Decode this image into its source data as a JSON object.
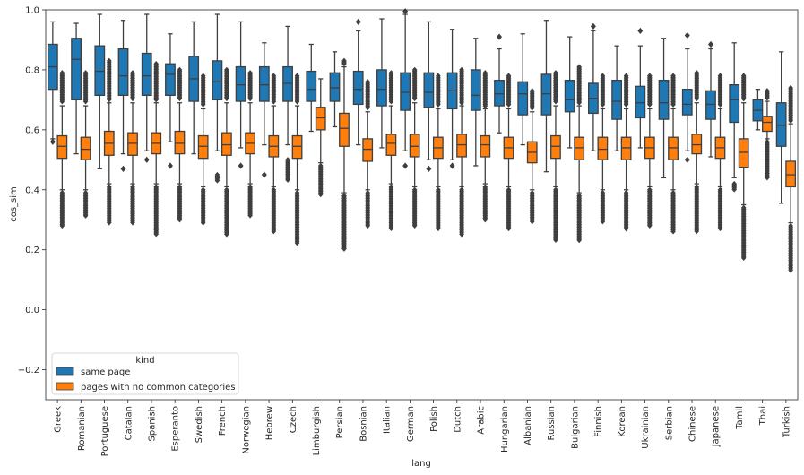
{
  "chart_data": {
    "type": "box",
    "xlabel": "lang",
    "ylabel": "cos_sim",
    "ylim": [
      -0.3,
      1.0
    ],
    "yticks": [
      -0.2,
      0.0,
      0.2,
      0.4,
      0.6,
      0.8,
      1.0
    ],
    "ytick_labels": [
      "−0.2",
      "0.0",
      "0.2",
      "0.4",
      "0.6",
      "0.8",
      "1.0"
    ],
    "legend": {
      "title": "kind",
      "position": "lower-left",
      "entries": [
        {
          "label": "same page",
          "color": "#1f77b4"
        },
        {
          "label": "pages with no common categories",
          "color": "#ff7f0e"
        }
      ]
    },
    "categories": [
      "Greek",
      "Romanian",
      "Portuguese",
      "Catalan",
      "Spanish",
      "Esperanto",
      "Swedish",
      "French",
      "Norwegian",
      "Hebrew",
      "Czech",
      "Limburgish",
      "Persian",
      "Bosnian",
      "Italian",
      "German",
      "Polish",
      "Dutch",
      "Arabic",
      "Hungarian",
      "Albanian",
      "Russian",
      "Bulgarian",
      "Finnish",
      "Korean",
      "Ukrainian",
      "Serbian",
      "Chinese",
      "Japanese",
      "Tamil",
      "Thai",
      "Turkish"
    ],
    "series": [
      {
        "name": "same page",
        "color": "#1f77b4",
        "boxes": [
          {
            "whislo": 0.57,
            "q1": 0.735,
            "med": 0.81,
            "q3": 0.885,
            "whishi": 0.96,
            "fliers_low": [
              0.56
            ],
            "fliers_high": []
          },
          {
            "whislo": 0.52,
            "q1": 0.7,
            "med": 0.835,
            "q3": 0.905,
            "whishi": 0.955,
            "fliers_low": [],
            "fliers_high": []
          },
          {
            "whislo": 0.47,
            "q1": 0.715,
            "med": 0.795,
            "q3": 0.88,
            "whishi": 0.985,
            "fliers_low": [],
            "fliers_high": []
          },
          {
            "whislo": 0.52,
            "q1": 0.715,
            "med": 0.78,
            "q3": 0.87,
            "whishi": 0.965,
            "fliers_low": [
              0.47
            ],
            "fliers_high": []
          },
          {
            "whislo": 0.53,
            "q1": 0.715,
            "med": 0.78,
            "q3": 0.855,
            "whishi": 0.985,
            "fliers_low": [
              0.5
            ],
            "fliers_high": []
          },
          {
            "whislo": 0.56,
            "q1": 0.715,
            "med": 0.785,
            "q3": 0.82,
            "whishi": 0.92,
            "fliers_low": [
              0.48
            ],
            "fliers_high": []
          },
          {
            "whislo": 0.52,
            "q1": 0.695,
            "med": 0.77,
            "q3": 0.845,
            "whishi": 0.96,
            "fliers_low": [],
            "fliers_high": []
          },
          {
            "whislo": 0.53,
            "q1": 0.7,
            "med": 0.76,
            "q3": 0.83,
            "whishi": 0.985,
            "fliers_low": [
              0.45,
              0.43
            ],
            "fliers_high": []
          },
          {
            "whislo": 0.54,
            "q1": 0.695,
            "med": 0.75,
            "q3": 0.81,
            "whishi": 0.96,
            "fliers_low": [
              0.48
            ],
            "fliers_high": []
          },
          {
            "whislo": 0.55,
            "q1": 0.695,
            "med": 0.75,
            "q3": 0.81,
            "whishi": 0.89,
            "fliers_low": [
              0.45
            ],
            "fliers_high": []
          },
          {
            "whislo": 0.55,
            "q1": 0.695,
            "med": 0.755,
            "q3": 0.81,
            "whishi": 0.945,
            "fliers_low": [
              0.5,
              0.43
            ],
            "fliers_high": []
          },
          {
            "whislo": 0.595,
            "q1": 0.695,
            "med": 0.735,
            "q3": 0.795,
            "whishi": 0.885,
            "fliers_low": [],
            "fliers_high": []
          },
          {
            "whislo": 0.61,
            "q1": 0.695,
            "med": 0.74,
            "q3": 0.79,
            "whishi": 0.86,
            "fliers_low": [],
            "fliers_high": []
          },
          {
            "whislo": 0.55,
            "q1": 0.685,
            "med": 0.735,
            "q3": 0.795,
            "whishi": 0.93,
            "fliers_low": [],
            "fliers_high": [
              0.96
            ]
          },
          {
            "whislo": 0.54,
            "q1": 0.68,
            "med": 0.735,
            "q3": 0.8,
            "whishi": 0.97,
            "fliers_low": [],
            "fliers_high": []
          },
          {
            "whislo": 0.53,
            "q1": 0.665,
            "med": 0.725,
            "q3": 0.79,
            "whishi": 0.985,
            "fliers_low": [
              0.48
            ],
            "fliers_high": [
              0.995
            ]
          },
          {
            "whislo": 0.5,
            "q1": 0.675,
            "med": 0.725,
            "q3": 0.79,
            "whishi": 0.96,
            "fliers_low": [
              0.47
            ],
            "fliers_high": []
          },
          {
            "whislo": 0.5,
            "q1": 0.67,
            "med": 0.73,
            "q3": 0.79,
            "whishi": 0.935,
            "fliers_low": [
              0.48
            ],
            "fliers_high": []
          },
          {
            "whislo": 0.48,
            "q1": 0.665,
            "med": 0.715,
            "q3": 0.8,
            "whishi": 0.905,
            "fliers_low": [],
            "fliers_high": []
          },
          {
            "whislo": 0.59,
            "q1": 0.68,
            "med": 0.72,
            "q3": 0.765,
            "whishi": 0.87,
            "fliers_low": [],
            "fliers_high": [
              0.91
            ]
          },
          {
            "whislo": 0.55,
            "q1": 0.65,
            "med": 0.72,
            "q3": 0.76,
            "whishi": 0.92,
            "fliers_low": [],
            "fliers_high": []
          },
          {
            "whislo": 0.46,
            "q1": 0.65,
            "med": 0.72,
            "q3": 0.785,
            "whishi": 0.965,
            "fliers_low": [],
            "fliers_high": []
          },
          {
            "whislo": 0.54,
            "q1": 0.66,
            "med": 0.7,
            "q3": 0.765,
            "whishi": 0.91,
            "fliers_low": [],
            "fliers_high": []
          },
          {
            "whislo": 0.53,
            "q1": 0.655,
            "med": 0.705,
            "q3": 0.755,
            "whishi": 0.93,
            "fliers_low": [],
            "fliers_high": [
              0.945
            ]
          },
          {
            "whislo": 0.53,
            "q1": 0.635,
            "med": 0.695,
            "q3": 0.765,
            "whishi": 0.88,
            "fliers_low": [],
            "fliers_high": []
          },
          {
            "whislo": 0.54,
            "q1": 0.64,
            "med": 0.69,
            "q3": 0.745,
            "whishi": 0.88,
            "fliers_low": [],
            "fliers_high": [
              0.93
            ]
          },
          {
            "whislo": 0.44,
            "q1": 0.635,
            "med": 0.69,
            "q3": 0.765,
            "whishi": 0.905,
            "fliers_low": [],
            "fliers_high": []
          },
          {
            "whislo": 0.53,
            "q1": 0.65,
            "med": 0.685,
            "q3": 0.735,
            "whishi": 0.87,
            "fliers_low": [
              0.5
            ],
            "fliers_high": [
              0.915
            ]
          },
          {
            "whislo": 0.51,
            "q1": 0.635,
            "med": 0.685,
            "q3": 0.73,
            "whishi": 0.87,
            "fliers_low": [],
            "fliers_high": [
              0.885
            ]
          },
          {
            "whislo": 0.44,
            "q1": 0.625,
            "med": 0.7,
            "q3": 0.75,
            "whishi": 0.89,
            "fliers_low": [
              0.42,
              0.4
            ],
            "fliers_high": []
          },
          {
            "whislo": 0.6,
            "q1": 0.63,
            "med": 0.665,
            "q3": 0.7,
            "whishi": 0.735,
            "fliers_low": [],
            "fliers_high": []
          },
          {
            "whislo": 0.355,
            "q1": 0.545,
            "med": 0.615,
            "q3": 0.69,
            "whishi": 0.86,
            "fliers_low": [],
            "fliers_high": []
          }
        ]
      },
      {
        "name": "pages with no common categories",
        "color": "#ff7f0e",
        "boxes": [
          {
            "whislo": 0.4,
            "q1": 0.505,
            "med": 0.545,
            "q3": 0.58,
            "whishi": 0.68,
            "fliers_low": [
              0.39,
              0.28
            ],
            "fliers_high": [
              0.79
            ]
          },
          {
            "whislo": 0.4,
            "q1": 0.5,
            "med": 0.535,
            "q3": 0.575,
            "whishi": 0.68,
            "fliers_low": [
              0.39,
              0.31
            ],
            "fliers_high": [
              0.79
            ]
          },
          {
            "whislo": 0.42,
            "q1": 0.515,
            "med": 0.555,
            "q3": 0.595,
            "whishi": 0.69,
            "fliers_low": [
              0.41,
              0.29
            ],
            "fliers_high": [
              0.83
            ]
          },
          {
            "whislo": 0.42,
            "q1": 0.515,
            "med": 0.555,
            "q3": 0.59,
            "whishi": 0.69,
            "fliers_low": [
              0.41,
              0.29
            ],
            "fliers_high": [
              0.79
            ]
          },
          {
            "whislo": 0.42,
            "q1": 0.52,
            "med": 0.555,
            "q3": 0.59,
            "whishi": 0.69,
            "fliers_low": [
              0.41,
              0.25
            ],
            "fliers_high": [
              0.82
            ]
          },
          {
            "whislo": 0.42,
            "q1": 0.52,
            "med": 0.555,
            "q3": 0.595,
            "whishi": 0.69,
            "fliers_low": [
              0.41,
              0.3
            ],
            "fliers_high": [
              0.8
            ]
          },
          {
            "whislo": 0.41,
            "q1": 0.505,
            "med": 0.545,
            "q3": 0.58,
            "whishi": 0.67,
            "fliers_low": [
              0.4,
              0.29
            ],
            "fliers_high": [
              0.78
            ]
          },
          {
            "whislo": 0.41,
            "q1": 0.515,
            "med": 0.55,
            "q3": 0.59,
            "whishi": 0.69,
            "fliers_low": [
              0.4,
              0.25
            ],
            "fliers_high": [
              0.8
            ]
          },
          {
            "whislo": 0.42,
            "q1": 0.52,
            "med": 0.555,
            "q3": 0.59,
            "whishi": 0.69,
            "fliers_low": [
              0.41,
              0.31
            ],
            "fliers_high": [
              0.79
            ]
          },
          {
            "whislo": 0.41,
            "q1": 0.51,
            "med": 0.545,
            "q3": 0.58,
            "whishi": 0.68,
            "fliers_low": [
              0.4,
              0.26
            ],
            "fliers_high": [
              0.78
            ]
          },
          {
            "whislo": 0.4,
            "q1": 0.505,
            "med": 0.545,
            "q3": 0.58,
            "whishi": 0.68,
            "fliers_low": [
              0.39,
              0.22
            ],
            "fliers_high": [
              0.78
            ]
          },
          {
            "whislo": 0.49,
            "q1": 0.6,
            "med": 0.64,
            "q3": 0.675,
            "whishi": 0.77,
            "fliers_low": [
              0.48,
              0.38
            ],
            "fliers_high": []
          },
          {
            "whislo": 0.39,
            "q1": 0.545,
            "med": 0.605,
            "q3": 0.655,
            "whishi": 0.81,
            "fliers_low": [
              0.38,
              0.2
            ],
            "fliers_high": [
              0.83
            ]
          },
          {
            "whislo": 0.4,
            "q1": 0.495,
            "med": 0.535,
            "q3": 0.57,
            "whishi": 0.66,
            "fliers_low": [
              0.39,
              0.28
            ],
            "fliers_high": [
              0.76
            ]
          },
          {
            "whislo": 0.42,
            "q1": 0.515,
            "med": 0.555,
            "q3": 0.585,
            "whishi": 0.68,
            "fliers_low": [
              0.41,
              0.27
            ],
            "fliers_high": [
              0.79
            ]
          },
          {
            "whislo": 0.41,
            "q1": 0.51,
            "med": 0.545,
            "q3": 0.585,
            "whishi": 0.69,
            "fliers_low": [
              0.4,
              0.28
            ],
            "fliers_high": [
              0.8
            ]
          },
          {
            "whislo": 0.41,
            "q1": 0.505,
            "med": 0.54,
            "q3": 0.575,
            "whishi": 0.67,
            "fliers_low": [
              0.4,
              0.27
            ],
            "fliers_high": [
              0.78
            ]
          },
          {
            "whislo": 0.41,
            "q1": 0.51,
            "med": 0.55,
            "q3": 0.585,
            "whishi": 0.68,
            "fliers_low": [
              0.4,
              0.25
            ],
            "fliers_high": [
              0.8
            ]
          },
          {
            "whislo": 0.42,
            "q1": 0.51,
            "med": 0.55,
            "q3": 0.58,
            "whishi": 0.67,
            "fliers_low": [
              0.41,
              0.3
            ],
            "fliers_high": [
              0.79
            ]
          },
          {
            "whislo": 0.41,
            "q1": 0.505,
            "med": 0.54,
            "q3": 0.575,
            "whishi": 0.67,
            "fliers_low": [
              0.4,
              0.27
            ],
            "fliers_high": [
              0.78
            ]
          },
          {
            "whislo": 0.4,
            "q1": 0.49,
            "med": 0.525,
            "q3": 0.56,
            "whishi": 0.66,
            "fliers_low": [
              0.39,
              0.29
            ],
            "fliers_high": [
              0.73
            ]
          },
          {
            "whislo": 0.41,
            "q1": 0.505,
            "med": 0.545,
            "q3": 0.58,
            "whishi": 0.68,
            "fliers_low": [
              0.4,
              0.23
            ],
            "fliers_high": [
              0.79
            ]
          },
          {
            "whislo": 0.39,
            "q1": 0.5,
            "med": 0.54,
            "q3": 0.575,
            "whishi": 0.68,
            "fliers_low": [
              0.38,
              0.23
            ],
            "fliers_high": [
              0.81
            ]
          },
          {
            "whislo": 0.4,
            "q1": 0.5,
            "med": 0.535,
            "q3": 0.575,
            "whishi": 0.67,
            "fliers_low": [
              0.39,
              0.29
            ],
            "fliers_high": [
              0.78
            ]
          },
          {
            "whislo": 0.4,
            "q1": 0.5,
            "med": 0.54,
            "q3": 0.575,
            "whishi": 0.67,
            "fliers_low": [
              0.39,
              0.27
            ],
            "fliers_high": [
              0.78
            ]
          },
          {
            "whislo": 0.41,
            "q1": 0.505,
            "med": 0.54,
            "q3": 0.575,
            "whishi": 0.67,
            "fliers_low": [
              0.4,
              0.28
            ],
            "fliers_high": [
              0.78
            ]
          },
          {
            "whislo": 0.4,
            "q1": 0.5,
            "med": 0.54,
            "q3": 0.575,
            "whishi": 0.67,
            "fliers_low": [
              0.39,
              0.26
            ],
            "fliers_high": [
              0.78
            ]
          },
          {
            "whislo": 0.42,
            "q1": 0.52,
            "med": 0.55,
            "q3": 0.585,
            "whishi": 0.69,
            "fliers_low": [
              0.41,
              0.26
            ],
            "fliers_high": [
              0.79
            ]
          },
          {
            "whislo": 0.41,
            "q1": 0.505,
            "med": 0.54,
            "q3": 0.575,
            "whishi": 0.67,
            "fliers_low": [
              0.4,
              0.27
            ],
            "fliers_high": [
              0.78
            ]
          },
          {
            "whislo": 0.35,
            "q1": 0.475,
            "med": 0.525,
            "q3": 0.57,
            "whishi": 0.69,
            "fliers_low": [
              0.34,
              0.17
            ],
            "fliers_high": [
              0.78
            ]
          },
          {
            "whislo": 0.57,
            "q1": 0.595,
            "med": 0.625,
            "q3": 0.645,
            "whishi": 0.695,
            "fliers_low": [
              0.56,
              0.44
            ],
            "fliers_high": [
              0.73
            ]
          },
          {
            "whislo": 0.29,
            "q1": 0.41,
            "med": 0.45,
            "q3": 0.495,
            "whishi": 0.62,
            "fliers_low": [
              0.28,
              0.13
            ],
            "fliers_high": [
              0.74
            ]
          }
        ]
      }
    ]
  }
}
